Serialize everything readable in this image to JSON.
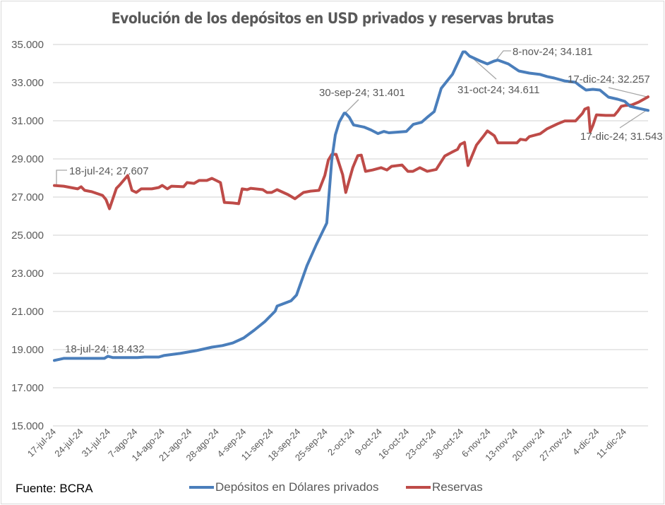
{
  "chart_data": {
    "type": "line",
    "title": "Evolución de los depósitos en USD privados y reservas brutas",
    "source": "Fuente: BCRA",
    "xlabel": "",
    "ylabel": "",
    "x_start_date": "17-jul-24",
    "x_range_days": [
      0,
      153
    ],
    "ylim": [
      15000,
      35000
    ],
    "yticks": [
      "15.000",
      "17.000",
      "19.000",
      "21.000",
      "23.000",
      "25.000",
      "27.000",
      "29.000",
      "31.000",
      "33.000",
      "35.000"
    ],
    "ytick_values": [
      15000,
      17000,
      19000,
      21000,
      23000,
      25000,
      27000,
      29000,
      31000,
      33000,
      35000
    ],
    "xticks": [
      "17-jul-24",
      "24-jul-24",
      "31-jul-24",
      "7-ago-24",
      "14-ago-24",
      "21-ago-24",
      "28-ago-24",
      "4-sep-24",
      "11-sep-24",
      "18-sep-24",
      "25-sep-24",
      "2-oct-24",
      "9-oct-24",
      "16-oct-24",
      "23-oct-24",
      "30-oct-24",
      "6-nov-24",
      "13-nov-24",
      "20-nov-24",
      "27-nov-24",
      "4-dic-24",
      "11-dic-24"
    ],
    "xtick_days": [
      0,
      7,
      14,
      21,
      28,
      35,
      42,
      49,
      56,
      63,
      70,
      77,
      84,
      91,
      98,
      105,
      112,
      119,
      126,
      133,
      140,
      147
    ],
    "grid": true,
    "legend_position": "bottom",
    "series": [
      {
        "name": "Depósitos en Dólares privados",
        "color": "#4a7ebb",
        "x_days": [
          0,
          2.4,
          7.8,
          12.9,
          13.8,
          15.1,
          21.4,
          23.3,
          26.9,
          28.2,
          32.4,
          36.6,
          40.6,
          43.3,
          46.0,
          48.8,
          51.5,
          54.2,
          56.9,
          57.4,
          61.0,
          62.4,
          65.1,
          67.5,
          70.2,
          71.5,
          72.4,
          73.4,
          74.7,
          75.0,
          76.0,
          77.1,
          79.8,
          81.6,
          83.4,
          84.9,
          86.2,
          90.7,
          92.5,
          94.6,
          96.1,
          97.9,
          99.7,
          102.6,
          105.3,
          105.9,
          107.0,
          109.8,
          111.6,
          113.3,
          114.3,
          117.0,
          119.7,
          122.4,
          125.2,
          127.0,
          128.8,
          131.5,
          134.3,
          135.2,
          137.0,
          138.8,
          140.6,
          142.8,
          145.2,
          147.0,
          148.4,
          150.6,
          153.0
        ],
        "values": [
          18432,
          18540,
          18540,
          18540,
          18650,
          18580,
          18580,
          18610,
          18610,
          18690,
          18800,
          18950,
          19130,
          19210,
          19350,
          19610,
          20020,
          20460,
          21020,
          21280,
          21560,
          21860,
          23400,
          24500,
          25640,
          28960,
          30260,
          30930,
          31401,
          31401,
          31180,
          30780,
          30670,
          30520,
          30330,
          30440,
          30370,
          30440,
          30810,
          30920,
          31180,
          31480,
          32700,
          33440,
          34611,
          34611,
          34390,
          34130,
          33980,
          34130,
          34181,
          33980,
          33610,
          33500,
          33430,
          33320,
          33240,
          33090,
          33020,
          32870,
          32610,
          32650,
          32610,
          32240,
          32130,
          32020,
          31760,
          31650,
          31543
        ]
      },
      {
        "name": "Reservas",
        "color": "#be4b48",
        "x_days": [
          0,
          2.4,
          4.2,
          6.0,
          6.9,
          7.8,
          9.6,
          12.4,
          13.3,
          14.2,
          16.0,
          16.9,
          18.9,
          20.0,
          21.1,
          22.4,
          25.1,
          26.9,
          27.8,
          29.1,
          30.2,
          33.3,
          34.2,
          36.0,
          37.3,
          39.3,
          40.6,
          42.8,
          43.8,
          46.0,
          47.5,
          48.4,
          49.7,
          50.6,
          53.7,
          54.8,
          56.0,
          57.4,
          60.2,
          62.0,
          64.2,
          66.0,
          68.2,
          69.7,
          70.6,
          71.5,
          72.6,
          74.3,
          75.1,
          76.9,
          78.2,
          79.1,
          80.2,
          82.0,
          84.2,
          85.7,
          86.9,
          89.6,
          89.6,
          91.1,
          92.4,
          94.2,
          96.1,
          98.4,
          100.6,
          102.4,
          103.9,
          104.6,
          105.7,
          106.6,
          108.8,
          110.8,
          111.6,
          113.4,
          114.3,
          117.0,
          119.2,
          120.1,
          121.5,
          122.4,
          125.2,
          127.0,
          129.7,
          131.5,
          132.6,
          133.4,
          134.3,
          136.1,
          136.7,
          137.6,
          138.1,
          138.8,
          139.7,
          142.1,
          142.8,
          144.3,
          145.2,
          146.1,
          147.0,
          148.8,
          150.6,
          153.0
        ],
        "values": [
          27607,
          27570,
          27500,
          27430,
          27540,
          27350,
          27280,
          27090,
          26870,
          26390,
          27460,
          27650,
          28130,
          27350,
          27240,
          27430,
          27430,
          27500,
          27610,
          27430,
          27570,
          27540,
          27760,
          27720,
          27870,
          27870,
          27980,
          27760,
          26720,
          26690,
          26650,
          27430,
          27390,
          27460,
          27390,
          27240,
          27240,
          27390,
          27130,
          26910,
          27240,
          27310,
          27350,
          28130,
          28940,
          29240,
          29240,
          28170,
          27240,
          28540,
          29170,
          29200,
          28350,
          28420,
          28540,
          28420,
          28610,
          28680,
          28680,
          28350,
          28350,
          28540,
          28350,
          28450,
          29150,
          29350,
          29500,
          29760,
          29870,
          28650,
          29730,
          30250,
          30470,
          30210,
          29840,
          29840,
          29840,
          30030,
          29990,
          30170,
          30320,
          30580,
          30840,
          30990,
          30990,
          30990,
          30990,
          31390,
          31610,
          31690,
          30430,
          30760,
          31310,
          31280,
          31280,
          31280,
          31500,
          31760,
          31800,
          31830,
          31980,
          32257
        ]
      }
    ],
    "annotations": [
      {
        "series": "Reservas",
        "label": "18-jul-24;  27.607",
        "day": 1,
        "value": 27607
      },
      {
        "series": "Depósitos en Dólares privados",
        "label": "18-jul-24; 18.432",
        "day": 1,
        "value": 18432
      },
      {
        "series": "Depósitos en Dólares privados",
        "label": "30-sep-24; 31.401",
        "day": 75,
        "value": 31401
      },
      {
        "series": "Depósitos en Dólares privados",
        "label": "31-oct-24; 34.611",
        "day": 106,
        "value": 34611
      },
      {
        "series": "Depósitos en Dólares privados",
        "label": "8-nov-24; 34.181",
        "day": 114,
        "value": 34181
      },
      {
        "series": "Reservas",
        "label": "17-dic-24;  32.257",
        "day": 153,
        "value": 32257
      },
      {
        "series": "Depósitos en Dólares privados",
        "label": "17-dic-24; 31.543",
        "day": 153,
        "value": 31543
      }
    ]
  }
}
